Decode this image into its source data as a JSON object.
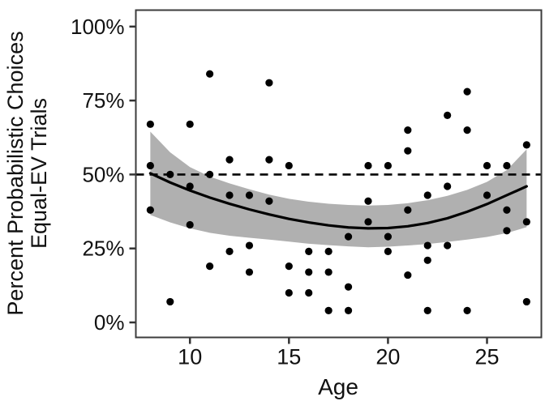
{
  "figure": {
    "background": "#ffffff",
    "xlabel": "Age",
    "ylabel_line1": "Percent Probabilistic Choices",
    "ylabel_line2": "Equal-EV Trials",
    "x_ticks": [
      {
        "value": 10,
        "label": "10"
      },
      {
        "value": 15,
        "label": "15"
      },
      {
        "value": 20,
        "label": "20"
      },
      {
        "value": 25,
        "label": "25"
      }
    ],
    "y_ticks": [
      {
        "value": 0,
        "label": "0%"
      },
      {
        "value": 25,
        "label": "25%"
      },
      {
        "value": 50,
        "label": "50%"
      },
      {
        "value": 75,
        "label": "75%"
      },
      {
        "value": 100,
        "label": "100%"
      }
    ],
    "colors": {
      "band": "#b0b0b0",
      "curve": "#000000",
      "points": "#000000",
      "reference_line": "#000000",
      "panel_border": "#3c3c3c",
      "tick": "#333333",
      "text": "#111111"
    }
  },
  "chart_data": {
    "type": "scatter",
    "title": "",
    "xlabel": "Age",
    "ylabel": "Percent Probabilistic Choices Equal-EV Trials",
    "xlim": [
      7.25,
      27.75
    ],
    "ylim": [
      -5,
      106
    ],
    "x_axis_ticks": [
      10,
      15,
      20,
      25
    ],
    "y_axis_ticks_pct": [
      0,
      25,
      50,
      75,
      100
    ],
    "legend": "none",
    "grid": "off",
    "reference_line": {
      "style": "dashed",
      "pct": 50
    },
    "points": [
      {
        "age": 8,
        "pct": 67
      },
      {
        "age": 8,
        "pct": 53
      },
      {
        "age": 8,
        "pct": 38
      },
      {
        "age": 9,
        "pct": 50
      },
      {
        "age": 9,
        "pct": 7
      },
      {
        "age": 10,
        "pct": 67
      },
      {
        "age": 10,
        "pct": 46
      },
      {
        "age": 10,
        "pct": 33
      },
      {
        "age": 11,
        "pct": 84
      },
      {
        "age": 11,
        "pct": 50
      },
      {
        "age": 11,
        "pct": 19
      },
      {
        "age": 12,
        "pct": 55
      },
      {
        "age": 12,
        "pct": 43
      },
      {
        "age": 12,
        "pct": 24
      },
      {
        "age": 13,
        "pct": 43
      },
      {
        "age": 13,
        "pct": 26
      },
      {
        "age": 13,
        "pct": 17
      },
      {
        "age": 14,
        "pct": 81
      },
      {
        "age": 14,
        "pct": 55
      },
      {
        "age": 14,
        "pct": 41
      },
      {
        "age": 15,
        "pct": 53
      },
      {
        "age": 15,
        "pct": 19
      },
      {
        "age": 15,
        "pct": 10
      },
      {
        "age": 16,
        "pct": 24
      },
      {
        "age": 16,
        "pct": 17
      },
      {
        "age": 16,
        "pct": 10
      },
      {
        "age": 17,
        "pct": 24
      },
      {
        "age": 17,
        "pct": 17
      },
      {
        "age": 17,
        "pct": 4
      },
      {
        "age": 18,
        "pct": 29
      },
      {
        "age": 18,
        "pct": 12
      },
      {
        "age": 18,
        "pct": 4
      },
      {
        "age": 19,
        "pct": 53
      },
      {
        "age": 19,
        "pct": 41
      },
      {
        "age": 19,
        "pct": 34
      },
      {
        "age": 20,
        "pct": 53
      },
      {
        "age": 20,
        "pct": 29
      },
      {
        "age": 20,
        "pct": 24
      },
      {
        "age": 21,
        "pct": 65
      },
      {
        "age": 21,
        "pct": 58
      },
      {
        "age": 21,
        "pct": 38
      },
      {
        "age": 21,
        "pct": 16
      },
      {
        "age": 22,
        "pct": 43
      },
      {
        "age": 22,
        "pct": 26
      },
      {
        "age": 22,
        "pct": 21
      },
      {
        "age": 22,
        "pct": 4
      },
      {
        "age": 23,
        "pct": 70
      },
      {
        "age": 23,
        "pct": 46
      },
      {
        "age": 23,
        "pct": 26
      },
      {
        "age": 24,
        "pct": 78
      },
      {
        "age": 24,
        "pct": 65
      },
      {
        "age": 24,
        "pct": 4
      },
      {
        "age": 25,
        "pct": 53
      },
      {
        "age": 25,
        "pct": 43
      },
      {
        "age": 26,
        "pct": 53
      },
      {
        "age": 26,
        "pct": 38
      },
      {
        "age": 26,
        "pct": 31
      },
      {
        "age": 27,
        "pct": 60
      },
      {
        "age": 27,
        "pct": 34
      },
      {
        "age": 27,
        "pct": 7
      }
    ],
    "smooth_curve": {
      "ages": [
        8,
        9,
        10,
        11,
        12,
        13,
        14,
        15,
        16,
        17,
        18,
        19,
        20,
        21,
        22,
        23,
        24,
        25,
        26,
        27
      ],
      "pct": [
        50.4,
        47.3,
        44.6,
        42.2,
        40.1,
        38.2,
        36.5,
        35.0,
        33.8,
        32.8,
        32.1,
        31.8,
        31.9,
        32.5,
        33.6,
        35.2,
        37.4,
        40.0,
        43.0,
        46.0
      ]
    },
    "confidence_band": {
      "ages": [
        8,
        9,
        10,
        11,
        12,
        13,
        14,
        15,
        16,
        17,
        18,
        19,
        20,
        21,
        22,
        23,
        24,
        25,
        26,
        27
      ],
      "upper_pct": [
        64.5,
        57.5,
        52.5,
        49.3,
        47.0,
        45.0,
        43.2,
        41.8,
        40.8,
        40.1,
        39.7,
        39.5,
        39.7,
        40.3,
        41.3,
        42.8,
        44.8,
        47.5,
        51.5,
        58.5
      ],
      "lower_pct": [
        36.3,
        33.8,
        31.8,
        30.3,
        29.3,
        28.6,
        28.0,
        27.3,
        26.6,
        26.1,
        25.7,
        25.4,
        25.6,
        26.0,
        26.5,
        27.2,
        28.0,
        28.9,
        30.2,
        32.2
      ]
    }
  }
}
